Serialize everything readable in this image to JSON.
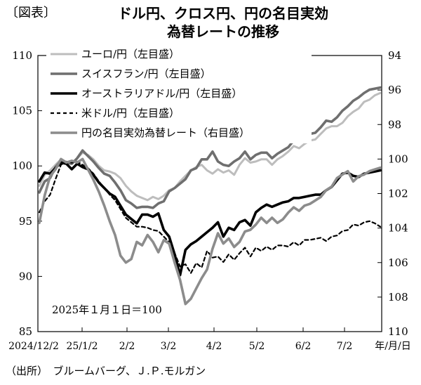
{
  "figure_tag": "〔図表〕",
  "title_lines": [
    "ドル円、クロス円、円の名目実効",
    "為替レートの推移"
  ],
  "note": "2025年１月１日＝100",
  "source": "（出所）　ブルームバーグ、Ｊ.Ｐ.モルガン",
  "chart_data": {
    "type": "line",
    "x_tick_labels": [
      "2024/12/2",
      "25/1/2",
      "2/2",
      "3/2",
      "4/2",
      "5/2",
      "6/2",
      "7/2",
      "年/月/日"
    ],
    "left_axis": {
      "ticks": [
        110,
        105,
        100,
        95,
        90,
        85
      ],
      "range": [
        85,
        110
      ]
    },
    "right_axis": {
      "ticks": [
        94,
        96,
        98,
        100,
        102,
        104,
        106,
        108,
        110
      ],
      "range": [
        94,
        110
      ],
      "inverted": true
    },
    "series": [
      {
        "name": "ユーロ/円（左目盛）",
        "axis": "left",
        "color": "#bdbdbd",
        "width": 3,
        "dash": "",
        "values": [
          98.2,
          99.2,
          99.6,
          100.1,
          100.6,
          100.3,
          100.2,
          100.7,
          101.2,
          101.0,
          100.6,
          100.0,
          99.6,
          99.5,
          99.3,
          98.9,
          98.2,
          97.7,
          97.3,
          97.1,
          96.9,
          97.2,
          97.0,
          97.3,
          97.8,
          98.0,
          98.6,
          99.1,
          99.6,
          99.9,
          100.1,
          99.6,
          99.3,
          99.7,
          99.4,
          99.6,
          99.2,
          100.1,
          100.7,
          100.3,
          100.4,
          100.6,
          100.6,
          100.1,
          100.6,
          100.9,
          101.3,
          101.8,
          101.6,
          102.0,
          102.3,
          102.4,
          102.9,
          103.4,
          103.6,
          103.6,
          103.9,
          104.5,
          104.9,
          105.2,
          105.8,
          106.0,
          106.4,
          106.6
        ]
      },
      {
        "name": "スイスフラン/円（左目盛）",
        "axis": "left",
        "color": "#6f6f6f",
        "width": 3.6,
        "dash": "",
        "values": [
          97.6,
          98.6,
          98.9,
          99.9,
          100.5,
          100.3,
          100.2,
          100.7,
          101.4,
          100.9,
          100.4,
          99.8,
          99.3,
          99.1,
          98.5,
          97.8,
          96.9,
          96.6,
          96.2,
          96.3,
          96.3,
          96.2,
          96.6,
          96.8,
          97.7,
          98.0,
          98.4,
          98.8,
          99.6,
          99.8,
          100.6,
          100.6,
          101.3,
          100.4,
          100.1,
          100.0,
          100.4,
          100.7,
          101.3,
          100.6,
          101.0,
          101.2,
          101.2,
          100.7,
          101.1,
          101.4,
          101.7,
          102.3,
          102.3,
          102.9,
          102.9,
          103.0,
          103.5,
          104.1,
          104.0,
          104.4,
          105.0,
          105.4,
          105.9,
          106.2,
          106.6,
          106.9,
          107.0,
          107.1
        ]
      },
      {
        "name": "オーストラリアドル/円（左目盛）",
        "axis": "left",
        "color": "#000000",
        "width": 3.6,
        "dash": "",
        "values": [
          98.6,
          99.4,
          99.3,
          99.8,
          100.3,
          100.2,
          99.7,
          100.2,
          99.9,
          99.7,
          99.2,
          98.5,
          98.0,
          97.5,
          97.2,
          96.4,
          95.6,
          95.2,
          94.8,
          95.6,
          95.6,
          95.4,
          95.7,
          94.2,
          93.6,
          92.0,
          90.1,
          92.4,
          92.9,
          93.2,
          93.6,
          94.0,
          94.4,
          94.9,
          93.6,
          94.4,
          94.2,
          94.9,
          95.1,
          94.6,
          95.8,
          96.2,
          96.5,
          96.3,
          96.5,
          96.7,
          96.8,
          97.1,
          97.1,
          97.2,
          97.3,
          97.4,
          97.4,
          97.8,
          98.1,
          98.7,
          99.3,
          99.4,
          99.1,
          99.0,
          99.3,
          99.4,
          99.5,
          99.6
        ]
      },
      {
        "name": "米ドル/円（左目盛）",
        "axis": "left",
        "color": "#000000",
        "width": 2.2,
        "dash": "5,4",
        "values": [
          95.8,
          96.8,
          97.4,
          98.8,
          100.1,
          100.4,
          100.3,
          100.4,
          100.1,
          99.8,
          99.3,
          98.6,
          98.0,
          97.4,
          96.9,
          96.1,
          95.3,
          94.9,
          94.5,
          94.5,
          94.4,
          94.2,
          94.1,
          93.6,
          93.1,
          92.1,
          90.9,
          91.1,
          90.3,
          91.2,
          90.8,
          92.3,
          91.7,
          91.8,
          91.3,
          92.0,
          91.5,
          92.1,
          92.6,
          91.8,
          92.6,
          92.3,
          92.7,
          92.4,
          92.8,
          92.8,
          92.7,
          93.1,
          92.8,
          93.3,
          93.3,
          93.4,
          93.5,
          93.2,
          93.6,
          93.7,
          94.1,
          94.2,
          94.7,
          94.6,
          94.9,
          95.0,
          94.8,
          94.5
        ]
      },
      {
        "name": "円の名目実効為替レート（右目盛）",
        "axis": "right",
        "color": "#8c8c8c",
        "width": 3.6,
        "dash": "",
        "values": [
          103.7,
          102.1,
          101.0,
          100.6,
          100.0,
          100.2,
          100.1,
          100.2,
          100.0,
          100.6,
          101.2,
          101.9,
          102.7,
          103.6,
          104.4,
          105.6,
          106.0,
          105.8,
          104.8,
          105.0,
          104.4,
          104.8,
          105.4,
          104.7,
          104.9,
          106.0,
          107.0,
          108.4,
          108.1,
          107.5,
          106.9,
          106.4,
          105.2,
          104.3,
          104.9,
          104.6,
          105.1,
          104.8,
          104.2,
          104.1,
          103.8,
          103.4,
          103.7,
          103.4,
          103.7,
          103.5,
          103.1,
          102.8,
          103.0,
          102.7,
          102.6,
          102.4,
          102.2,
          101.8,
          101.6,
          101.1,
          100.9,
          100.7,
          101.3,
          101.0,
          100.9,
          100.7,
          100.6,
          100.5
        ]
      }
    ]
  }
}
